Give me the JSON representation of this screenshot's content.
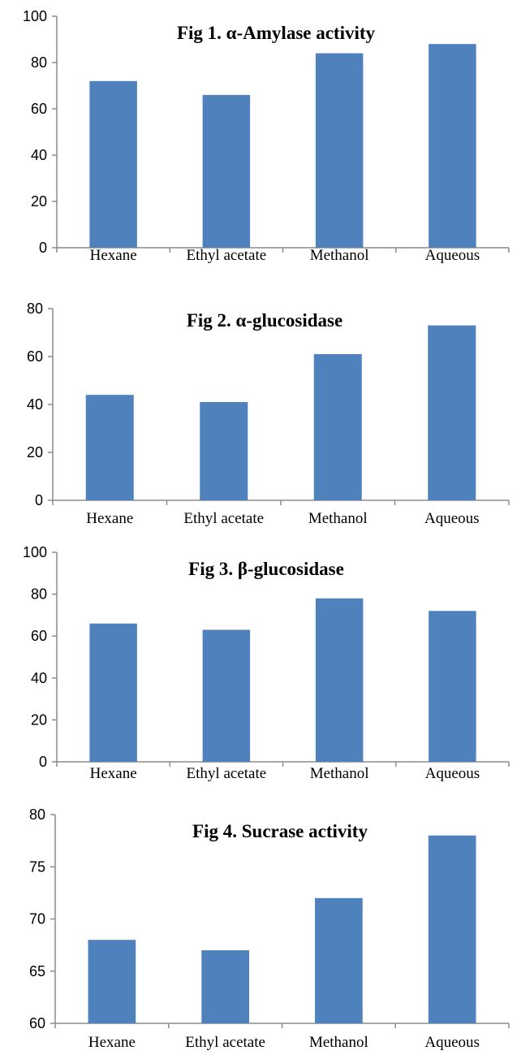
{
  "chart_data": [
    {
      "type": "bar",
      "title": "Fig 1. α-Amylase activity",
      "categories": [
        "Hexane",
        "Ethyl acetate",
        "Methanol",
        "Aqueous"
      ],
      "values": [
        72,
        66,
        84,
        88
      ],
      "ylim": [
        0,
        100
      ],
      "yticks": [
        0,
        20,
        40,
        60,
        80,
        100
      ],
      "color": "#4f81bd"
    },
    {
      "type": "bar",
      "title": "Fig 2. α-glucosidase",
      "categories": [
        "Hexane",
        "Ethyl acetate",
        "Methanol",
        "Aqueous"
      ],
      "values": [
        44,
        41,
        61,
        73
      ],
      "ylim": [
        0,
        80
      ],
      "yticks": [
        0,
        20,
        40,
        60,
        80
      ],
      "color": "#4f81bd"
    },
    {
      "type": "bar",
      "title": "Fig 3. β-glucosidase",
      "categories": [
        "Hexane",
        "Ethyl acetate",
        "Methanol",
        "Aqueous"
      ],
      "values": [
        66,
        63,
        78,
        72
      ],
      "ylim": [
        0,
        100
      ],
      "yticks": [
        0,
        20,
        40,
        60,
        80,
        100
      ],
      "color": "#4f81bd"
    },
    {
      "type": "bar",
      "title": "Fig 4. Sucrase activity",
      "categories": [
        "Hexane",
        "Ethyl acetate",
        "Methanol",
        "Aqueous"
      ],
      "values": [
        68,
        67,
        72,
        78
      ],
      "ylim": [
        60,
        80
      ],
      "yticks": [
        60,
        65,
        70,
        75,
        80
      ],
      "color": "#4f81bd"
    }
  ]
}
